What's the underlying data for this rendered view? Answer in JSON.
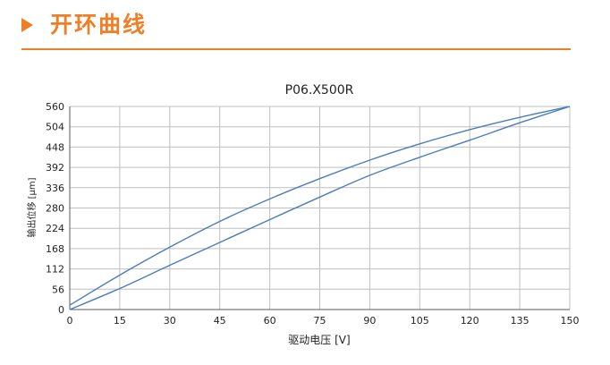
{
  "page": {
    "title": "开环曲线",
    "accent_color": "#F07E26",
    "arrow_icon": "triangle-right-icon"
  },
  "chart_data": {
    "type": "line",
    "title": "P06.X500R",
    "xlabel": "驱动电压 [V]",
    "ylabel": "输出位移 [μm]",
    "xlim": [
      0,
      150
    ],
    "ylim": [
      0,
      560
    ],
    "xticks": [
      0,
      15,
      30,
      45,
      60,
      75,
      90,
      105,
      120,
      135,
      150
    ],
    "yticks": [
      0,
      56,
      112,
      168,
      224,
      280,
      336,
      392,
      448,
      504,
      560
    ],
    "grid": true,
    "line_color": "#4A7EBB",
    "series": [
      {
        "x": [
          0,
          15,
          30,
          45,
          60,
          75,
          90,
          105,
          120,
          135,
          150
        ],
        "values": [
          12,
          95,
          172,
          243,
          305,
          361,
          412,
          457,
          496,
          530,
          560
        ]
      },
      {
        "x": [
          0,
          15,
          30,
          45,
          60,
          75,
          90,
          105,
          120,
          135,
          150
        ],
        "values": [
          0,
          58,
          122,
          185,
          248,
          310,
          370,
          420,
          467,
          515,
          560
        ]
      }
    ]
  }
}
